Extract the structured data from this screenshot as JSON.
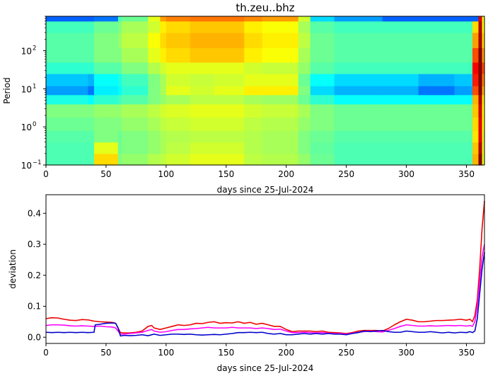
{
  "chart_data": [
    {
      "type": "heatmap",
      "title": "th.zeu..bhz",
      "xlabel": "days since 25-Jul-2024",
      "ylabel": "Period",
      "xlim": [
        0,
        365
      ],
      "ylim": [
        0.1,
        800
      ],
      "y_scale": "log",
      "colormap": "jet",
      "x_ticks": [
        0,
        50,
        100,
        150,
        200,
        250,
        300,
        350
      ],
      "x_tick_labels": [
        "0",
        "50",
        "100",
        "150",
        "200",
        "250",
        "300",
        "350"
      ],
      "y_ticks": [
        0.1,
        1,
        10,
        100
      ],
      "y_tick_labels": [
        "10",
        "10",
        "10",
        "10"
      ],
      "y_tick_exponents": [
        "−1",
        "0",
        "1",
        "2"
      ],
      "x_bands": [
        0,
        5,
        35,
        40,
        42,
        60,
        63,
        85,
        95,
        100,
        120,
        140,
        165,
        180,
        210,
        220,
        240,
        280,
        310,
        340,
        355,
        360,
        363,
        365
      ],
      "y_bands": [
        0.1,
        0.2,
        0.4,
        0.8,
        1.8,
        4,
        7,
        12,
        25,
        50,
        120,
        300,
        600,
        800
      ],
      "intensity_grid": [
        [
          0.45,
          0.45,
          0.45,
          0.66,
          0.66,
          0.5,
          0.52,
          0.55,
          0.56,
          0.58,
          0.6,
          0.6,
          0.56,
          0.55,
          0.52,
          0.48,
          0.45,
          0.45,
          0.45,
          0.45,
          0.7,
          1.0,
          0.6
        ],
        [
          0.45,
          0.45,
          0.45,
          0.6,
          0.6,
          0.48,
          0.5,
          0.52,
          0.54,
          0.56,
          0.58,
          0.58,
          0.55,
          0.54,
          0.5,
          0.47,
          0.45,
          0.45,
          0.45,
          0.45,
          0.68,
          0.95,
          0.6
        ],
        [
          0.46,
          0.46,
          0.46,
          0.5,
          0.5,
          0.48,
          0.5,
          0.52,
          0.54,
          0.55,
          0.56,
          0.56,
          0.55,
          0.54,
          0.5,
          0.48,
          0.46,
          0.46,
          0.46,
          0.46,
          0.65,
          0.9,
          0.6
        ],
        [
          0.48,
          0.48,
          0.48,
          0.5,
          0.5,
          0.5,
          0.52,
          0.54,
          0.56,
          0.57,
          0.58,
          0.58,
          0.56,
          0.55,
          0.52,
          0.5,
          0.48,
          0.48,
          0.48,
          0.48,
          0.66,
          0.9,
          0.62
        ],
        [
          0.5,
          0.5,
          0.5,
          0.52,
          0.52,
          0.52,
          0.54,
          0.56,
          0.58,
          0.59,
          0.6,
          0.6,
          0.58,
          0.57,
          0.54,
          0.5,
          0.48,
          0.48,
          0.48,
          0.48,
          0.68,
          0.92,
          0.62
        ],
        [
          0.4,
          0.4,
          0.38,
          0.42,
          0.42,
          0.44,
          0.46,
          0.5,
          0.52,
          0.54,
          0.56,
          0.56,
          0.54,
          0.53,
          0.48,
          0.42,
          0.38,
          0.38,
          0.38,
          0.38,
          0.7,
          0.95,
          0.64
        ],
        [
          0.28,
          0.28,
          0.24,
          0.36,
          0.36,
          0.38,
          0.42,
          0.5,
          0.54,
          0.6,
          0.58,
          0.6,
          0.64,
          0.64,
          0.5,
          0.34,
          0.3,
          0.3,
          0.24,
          0.28,
          0.8,
          1.0,
          0.7
        ],
        [
          0.32,
          0.32,
          0.3,
          0.38,
          0.38,
          0.4,
          0.44,
          0.5,
          0.54,
          0.58,
          0.57,
          0.58,
          0.6,
          0.6,
          0.48,
          0.38,
          0.34,
          0.34,
          0.3,
          0.32,
          0.85,
          1.0,
          0.75
        ],
        [
          0.42,
          0.42,
          0.42,
          0.46,
          0.46,
          0.46,
          0.5,
          0.55,
          0.58,
          0.6,
          0.6,
          0.6,
          0.58,
          0.57,
          0.52,
          0.46,
          0.44,
          0.44,
          0.44,
          0.44,
          0.88,
          1.0,
          0.8
        ],
        [
          0.46,
          0.46,
          0.46,
          0.5,
          0.5,
          0.5,
          0.54,
          0.6,
          0.64,
          0.66,
          0.68,
          0.68,
          0.64,
          0.62,
          0.54,
          0.48,
          0.46,
          0.46,
          0.46,
          0.46,
          0.8,
          1.0,
          0.72
        ],
        [
          0.46,
          0.46,
          0.46,
          0.5,
          0.5,
          0.52,
          0.56,
          0.62,
          0.66,
          0.68,
          0.7,
          0.7,
          0.66,
          0.64,
          0.56,
          0.48,
          0.46,
          0.46,
          0.46,
          0.46,
          0.72,
          0.96,
          0.66
        ],
        [
          0.44,
          0.44,
          0.44,
          0.48,
          0.48,
          0.5,
          0.54,
          0.58,
          0.64,
          0.66,
          0.68,
          0.68,
          0.64,
          0.62,
          0.54,
          0.46,
          0.44,
          0.44,
          0.44,
          0.44,
          0.66,
          0.95,
          0.62
        ],
        [
          0.22,
          0.22,
          0.22,
          0.24,
          0.24,
          0.45,
          0.48,
          0.6,
          0.72,
          0.75,
          0.76,
          0.76,
          0.74,
          0.72,
          0.58,
          0.34,
          0.28,
          0.22,
          0.22,
          0.22,
          0.22,
          0.9,
          0.6
        ]
      ]
    },
    {
      "type": "line",
      "xlabel": "days since 25-Jul-2024",
      "ylabel": "deviation",
      "xlim": [
        0,
        365
      ],
      "ylim": [
        -0.02,
        0.46
      ],
      "x_ticks": [
        0,
        50,
        100,
        150,
        200,
        250,
        300,
        350
      ],
      "y_ticks": [
        0.0,
        0.1,
        0.2,
        0.3,
        0.4
      ],
      "y_tick_labels": [
        "0.0",
        "0.1",
        "0.2",
        "0.3",
        "0.4"
      ],
      "series": [
        {
          "color": "#ee0000",
          "x": [
            0,
            5,
            10,
            15,
            20,
            25,
            30,
            35,
            40,
            45,
            50,
            55,
            58,
            60,
            62,
            65,
            70,
            75,
            80,
            85,
            88,
            90,
            95,
            100,
            105,
            110,
            115,
            120,
            125,
            130,
            135,
            140,
            145,
            150,
            155,
            160,
            165,
            170,
            175,
            180,
            185,
            190,
            195,
            200,
            205,
            210,
            215,
            220,
            225,
            230,
            235,
            240,
            245,
            250,
            255,
            260,
            265,
            270,
            275,
            280,
            285,
            290,
            295,
            300,
            305,
            310,
            315,
            320,
            325,
            330,
            335,
            340,
            345,
            350,
            353,
            355,
            357,
            359,
            361,
            363,
            365
          ],
          "y": [
            0.06,
            0.063,
            0.062,
            0.058,
            0.055,
            0.054,
            0.057,
            0.056,
            0.052,
            0.05,
            0.049,
            0.048,
            0.045,
            0.03,
            0.015,
            0.014,
            0.014,
            0.016,
            0.02,
            0.035,
            0.038,
            0.03,
            0.025,
            0.03,
            0.035,
            0.04,
            0.038,
            0.04,
            0.045,
            0.044,
            0.048,
            0.05,
            0.045,
            0.047,
            0.046,
            0.05,
            0.045,
            0.048,
            0.042,
            0.045,
            0.04,
            0.035,
            0.035,
            0.025,
            0.018,
            0.02,
            0.02,
            0.02,
            0.018,
            0.02,
            0.016,
            0.015,
            0.014,
            0.012,
            0.015,
            0.02,
            0.022,
            0.022,
            0.022,
            0.02,
            0.028,
            0.04,
            0.05,
            0.058,
            0.055,
            0.05,
            0.05,
            0.052,
            0.054,
            0.054,
            0.055,
            0.056,
            0.058,
            0.055,
            0.058,
            0.05,
            0.07,
            0.12,
            0.22,
            0.35,
            0.44
          ]
        },
        {
          "color": "#ff00ff",
          "x": [
            0,
            5,
            10,
            15,
            20,
            25,
            30,
            35,
            40,
            45,
            50,
            55,
            58,
            60,
            62,
            65,
            70,
            75,
            80,
            85,
            88,
            90,
            95,
            100,
            105,
            110,
            115,
            120,
            125,
            130,
            135,
            140,
            145,
            150,
            155,
            160,
            165,
            170,
            175,
            180,
            185,
            190,
            195,
            200,
            205,
            210,
            215,
            220,
            225,
            230,
            235,
            240,
            245,
            250,
            255,
            260,
            265,
            270,
            275,
            280,
            285,
            290,
            295,
            300,
            305,
            310,
            315,
            320,
            325,
            330,
            335,
            340,
            345,
            350,
            353,
            355,
            357,
            359,
            361,
            363,
            365
          ],
          "y": [
            0.038,
            0.04,
            0.04,
            0.039,
            0.037,
            0.036,
            0.037,
            0.036,
            0.035,
            0.036,
            0.034,
            0.033,
            0.03,
            0.02,
            0.01,
            0.01,
            0.012,
            0.014,
            0.016,
            0.022,
            0.025,
            0.02,
            0.016,
            0.018,
            0.022,
            0.025,
            0.025,
            0.027,
            0.028,
            0.03,
            0.032,
            0.03,
            0.03,
            0.03,
            0.032,
            0.03,
            0.03,
            0.03,
            0.028,
            0.03,
            0.028,
            0.025,
            0.026,
            0.02,
            0.015,
            0.015,
            0.016,
            0.015,
            0.014,
            0.015,
            0.013,
            0.012,
            0.012,
            0.01,
            0.013,
            0.016,
            0.018,
            0.02,
            0.018,
            0.017,
            0.022,
            0.028,
            0.035,
            0.04,
            0.038,
            0.036,
            0.036,
            0.037,
            0.036,
            0.037,
            0.038,
            0.037,
            0.038,
            0.036,
            0.038,
            0.035,
            0.05,
            0.1,
            0.18,
            0.26,
            0.3
          ]
        },
        {
          "color": "#0000cc",
          "x": [
            0,
            5,
            10,
            15,
            20,
            25,
            30,
            35,
            40,
            41,
            45,
            50,
            55,
            58,
            60,
            62,
            65,
            70,
            75,
            80,
            85,
            90,
            95,
            100,
            105,
            110,
            115,
            120,
            125,
            130,
            135,
            140,
            145,
            150,
            155,
            160,
            165,
            170,
            175,
            180,
            185,
            190,
            195,
            200,
            205,
            210,
            215,
            220,
            225,
            230,
            235,
            240,
            245,
            250,
            255,
            260,
            265,
            270,
            275,
            280,
            285,
            290,
            295,
            300,
            305,
            310,
            315,
            320,
            325,
            330,
            335,
            340,
            345,
            350,
            353,
            355,
            357,
            359,
            361,
            363,
            365
          ],
          "y": [
            0.016,
            0.015,
            0.016,
            0.015,
            0.016,
            0.015,
            0.016,
            0.015,
            0.016,
            0.04,
            0.042,
            0.045,
            0.046,
            0.045,
            0.03,
            0.004,
            0.006,
            0.005,
            0.006,
            0.008,
            0.005,
            0.01,
            0.006,
            0.008,
            0.01,
            0.01,
            0.009,
            0.01,
            0.008,
            0.007,
            0.008,
            0.009,
            0.008,
            0.01,
            0.012,
            0.015,
            0.015,
            0.016,
            0.015,
            0.016,
            0.012,
            0.01,
            0.012,
            0.008,
            0.008,
            0.01,
            0.012,
            0.01,
            0.012,
            0.01,
            0.012,
            0.01,
            0.01,
            0.008,
            0.012,
            0.015,
            0.02,
            0.018,
            0.02,
            0.022,
            0.018,
            0.016,
            0.016,
            0.02,
            0.018,
            0.016,
            0.016,
            0.018,
            0.016,
            0.014,
            0.016,
            0.014,
            0.016,
            0.015,
            0.018,
            0.015,
            0.02,
            0.06,
            0.14,
            0.22,
            0.275
          ]
        }
      ]
    }
  ]
}
